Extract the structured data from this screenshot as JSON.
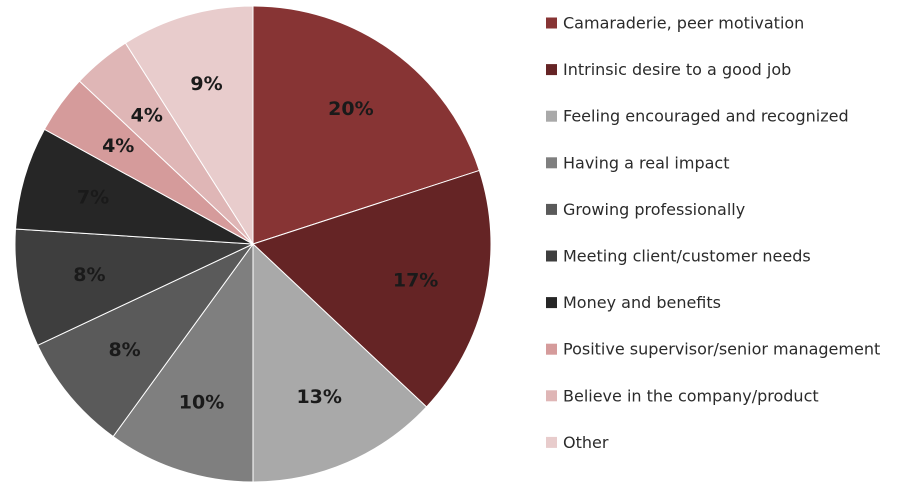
{
  "chart_data": {
    "type": "pie",
    "title": "",
    "legend_position": "right",
    "start_angle_deg": 0,
    "direction": "clockwise",
    "slices": [
      {
        "name": "Camaraderie, peer motivation",
        "value": 20,
        "label": "20%",
        "color": "#873434"
      },
      {
        "name": "Intrinsic desire to a good job",
        "value": 17,
        "label": "17%",
        "color": "#652425"
      },
      {
        "name": "Feeling encouraged and recognized",
        "value": 13,
        "label": "13%",
        "color": "#a9a9a9"
      },
      {
        "name": "Having a real impact",
        "value": 10,
        "label": "10%",
        "color": "#7f7f7f"
      },
      {
        "name": "Growing professionally",
        "value": 8,
        "label": "8%",
        "color": "#5a5a5a"
      },
      {
        "name": "Meeting client/customer needs",
        "value": 8,
        "label": "8%",
        "color": "#3e3e3e"
      },
      {
        "name": "Money and benefits",
        "value": 7,
        "label": "7%",
        "color": "#262626"
      },
      {
        "name": "Positive supervisor/senior  management",
        "value": 4,
        "label": "4%",
        "color": "#d59b9b"
      },
      {
        "name": "Believe in the company/product",
        "value": 4,
        "label": "4%",
        "color": "#dfb6b6"
      },
      {
        "name": "Other",
        "value": 9,
        "label": "9%",
        "color": "#e8cccc"
      }
    ]
  }
}
